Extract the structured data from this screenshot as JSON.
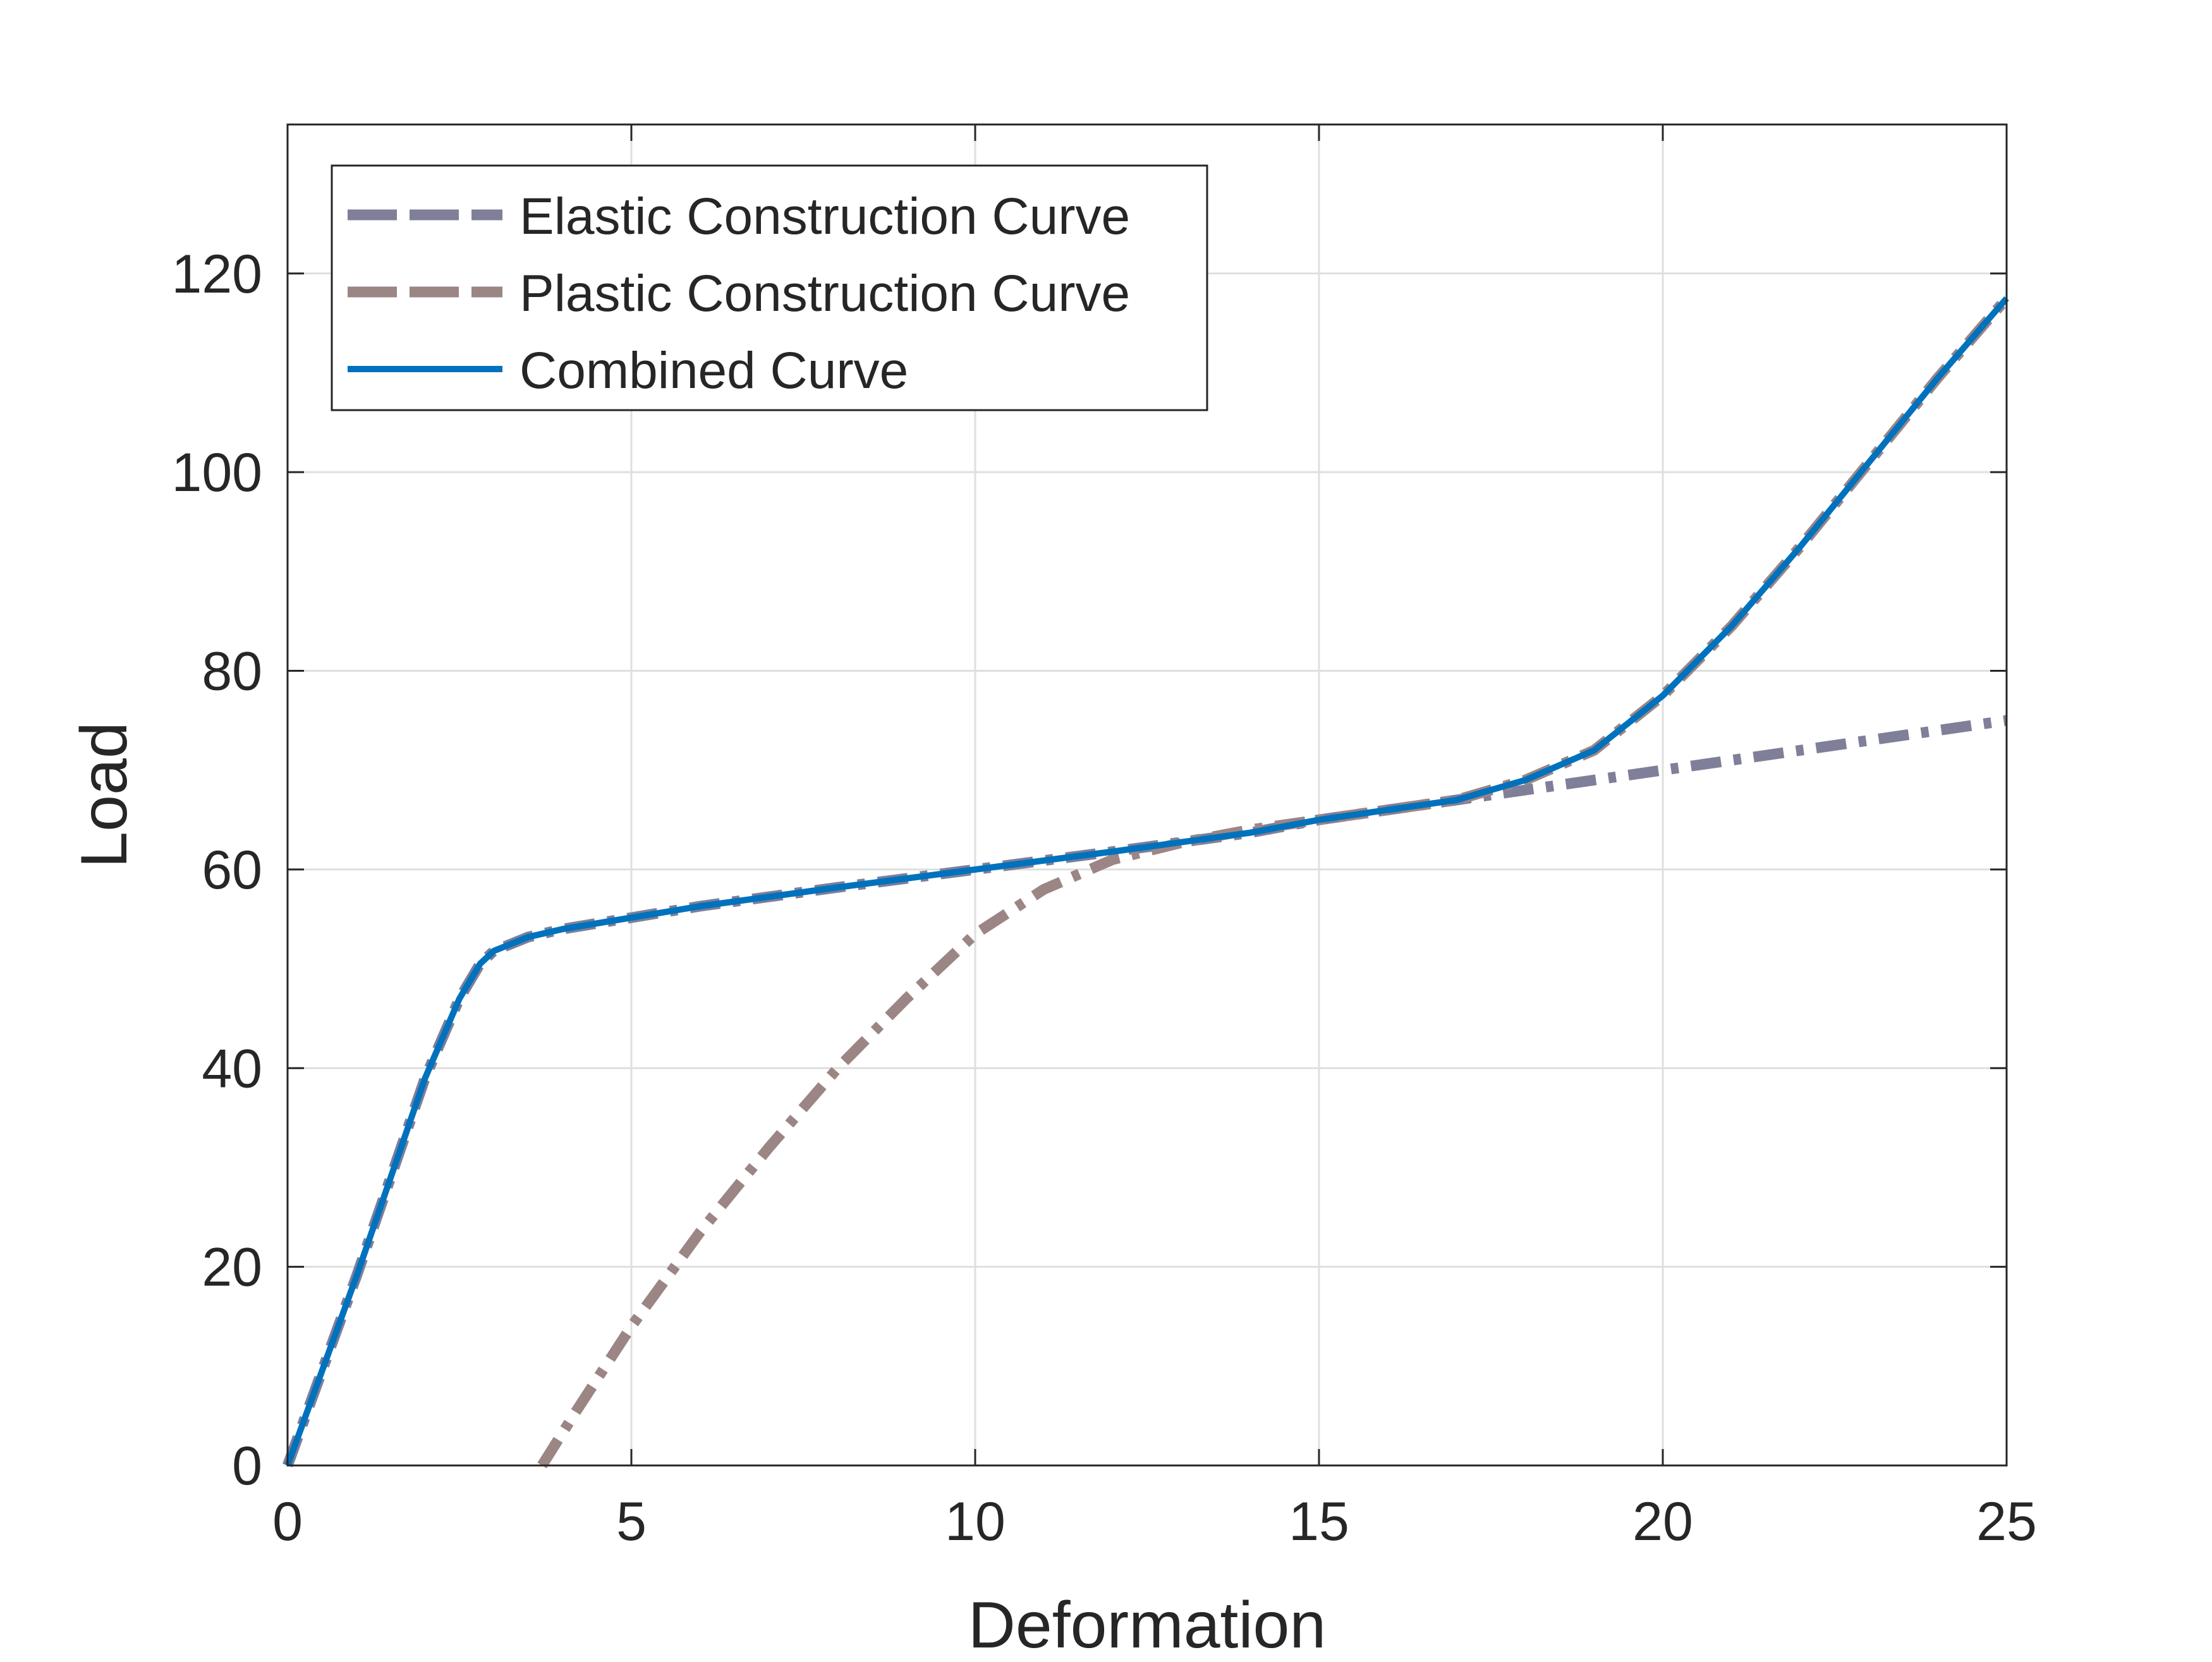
{
  "chart_data": {
    "type": "line",
    "title": "",
    "xlabel": "Deformation",
    "ylabel": "Load",
    "xlim": [
      0,
      25
    ],
    "ylim": [
      0,
      135
    ],
    "xticks": [
      "0",
      "5",
      "10",
      "15",
      "20",
      "25"
    ],
    "yticks": [
      "0",
      "20",
      "40",
      "60",
      "80",
      "100",
      "120"
    ],
    "grid": true,
    "legend_position": "top-left",
    "series": [
      {
        "name": "Elastic Construction Curve",
        "style": "dash-dot",
        "color": "#7f7f99",
        "x": [
          0,
          0.5,
          1.0,
          1.5,
          2.0,
          2.5,
          2.8,
          3.0,
          3.5,
          4,
          6,
          8,
          10,
          12,
          14,
          15,
          16,
          17,
          18,
          19,
          20,
          21,
          22,
          23,
          24,
          25
        ],
        "y": [
          0,
          9.5,
          19,
          29,
          39,
          47,
          50.5,
          51.8,
          53.2,
          54,
          56.3,
          58.2,
          60,
          61.8,
          63.7,
          65,
          66,
          67,
          68,
          69,
          70,
          71,
          72,
          73,
          74,
          75
        ]
      },
      {
        "name": "Plastic Construction Curve",
        "style": "dash-dot",
        "color": "#9c8585",
        "x": [
          3.7,
          4.2,
          5,
          6,
          7,
          8,
          9,
          10,
          11,
          12,
          13,
          14,
          15,
          16,
          17,
          18,
          19,
          20,
          21,
          22,
          23,
          24,
          25
        ],
        "y": [
          0,
          5.5,
          14,
          23.5,
          32,
          40,
          47,
          53.5,
          58,
          61,
          62.7,
          64,
          65,
          66,
          67,
          69,
          72,
          77.5,
          84.5,
          92.5,
          101,
          109.5,
          117.5
        ]
      },
      {
        "name": "Combined Curve",
        "style": "solid",
        "color": "#0072bd",
        "x": [
          0,
          0.5,
          1.0,
          1.5,
          2.0,
          2.5,
          2.8,
          3.0,
          3.5,
          4,
          6,
          8,
          10,
          12,
          14,
          15,
          16,
          17,
          18,
          19,
          20,
          21,
          22,
          23,
          24,
          25
        ],
        "y": [
          0,
          9.5,
          19,
          29,
          39,
          47,
          50.5,
          51.8,
          53.2,
          54,
          56.3,
          58.2,
          60,
          61.8,
          63.7,
          65,
          66,
          67,
          69,
          72,
          77.5,
          84.5,
          92.5,
          101,
          109.5,
          117.5
        ]
      }
    ]
  }
}
